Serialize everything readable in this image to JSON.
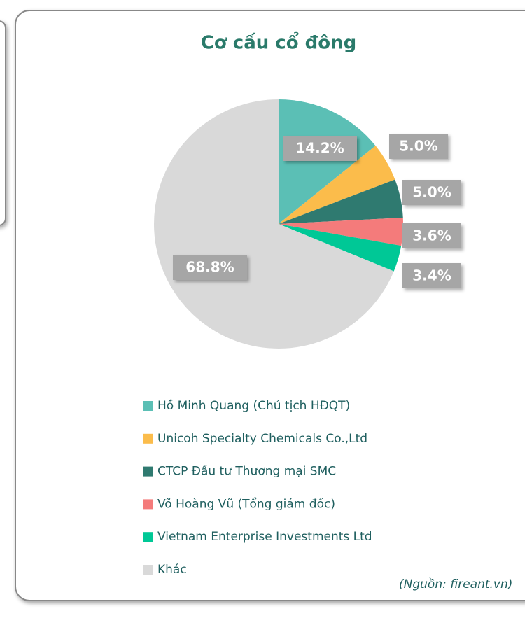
{
  "chart_data": {
    "type": "pie",
    "title": "Cơ cấu cổ đông",
    "categories": [
      "Hồ Minh Quang (Chủ tịch HĐQT)",
      "Unicoh Specialty Chemicals Co.,Ltd",
      "CTCP Đầu tư Thương mại SMC",
      "Võ Hoàng Vũ (Tổng giám đốc)",
      "Vietnam Enterprise Investments Ltd",
      "Khác"
    ],
    "values": [
      14.2,
      5.0,
      5.0,
      3.6,
      3.4,
      68.8
    ],
    "value_labels": [
      "14.2%",
      "5.0%",
      "5.0%",
      "3.6%",
      "3.4%",
      "68.8%"
    ],
    "colors": [
      "#5bbfb5",
      "#fbbc4b",
      "#2f7a70",
      "#f47b7b",
      "#00c896",
      "#d9d9d9"
    ],
    "source": "(Nguồn: fireant.vn)"
  }
}
